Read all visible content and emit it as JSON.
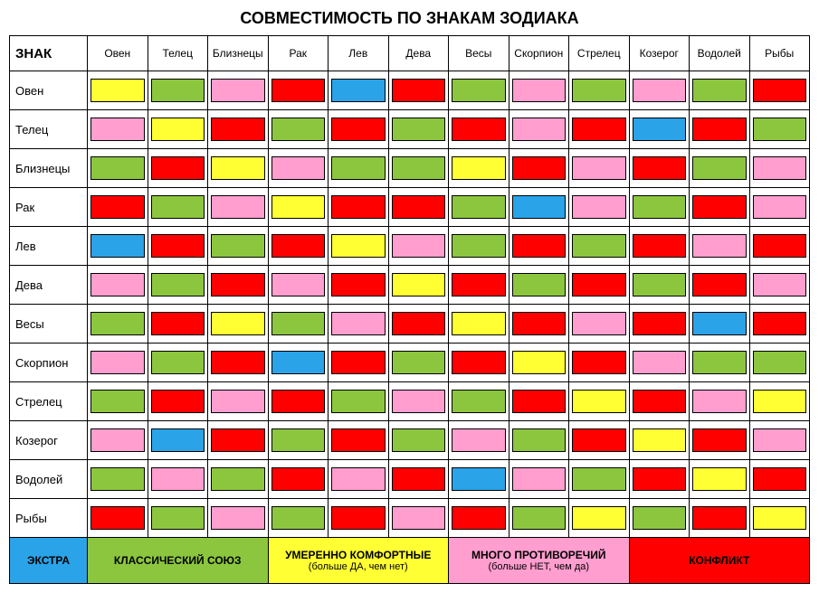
{
  "title": "СОВМЕСТИМОСТЬ ПО ЗНАКАМ ЗОДИАКА",
  "corner_label": "ЗНАК",
  "signs": [
    "Овен",
    "Телец",
    "Близнецы",
    "Рак",
    "Лев",
    "Дева",
    "Весы",
    "Скорпион",
    "Стрелец",
    "Козерог",
    "Водолей",
    "Рыбы"
  ],
  "colors": {
    "E": "#2aa3e8",
    "G": "#8cc63f",
    "Y": "#ffff33",
    "P": "#ff9ecf",
    "R": "#ff0000"
  },
  "grid": [
    [
      "Y",
      "G",
      "P",
      "R",
      "E",
      "R",
      "G",
      "P",
      "G",
      "P",
      "G",
      "R"
    ],
    [
      "P",
      "Y",
      "R",
      "G",
      "R",
      "G",
      "R",
      "P",
      "R",
      "E",
      "R",
      "G"
    ],
    [
      "G",
      "R",
      "Y",
      "P",
      "G",
      "G",
      "Y",
      "R",
      "P",
      "R",
      "G",
      "P"
    ],
    [
      "R",
      "G",
      "P",
      "Y",
      "R",
      "R",
      "G",
      "E",
      "P",
      "G",
      "R",
      "P"
    ],
    [
      "E",
      "R",
      "G",
      "R",
      "Y",
      "P",
      "G",
      "R",
      "G",
      "R",
      "P",
      "R"
    ],
    [
      "P",
      "G",
      "R",
      "P",
      "R",
      "Y",
      "R",
      "G",
      "R",
      "G",
      "R",
      "P"
    ],
    [
      "G",
      "R",
      "Y",
      "G",
      "P",
      "R",
      "Y",
      "R",
      "P",
      "R",
      "E",
      "R"
    ],
    [
      "P",
      "G",
      "R",
      "E",
      "R",
      "G",
      "R",
      "Y",
      "R",
      "P",
      "G",
      "G"
    ],
    [
      "G",
      "R",
      "P",
      "R",
      "G",
      "P",
      "G",
      "R",
      "Y",
      "R",
      "P",
      "Y"
    ],
    [
      "P",
      "E",
      "R",
      "G",
      "R",
      "G",
      "P",
      "G",
      "R",
      "Y",
      "R",
      "P"
    ],
    [
      "G",
      "P",
      "G",
      "R",
      "P",
      "R",
      "E",
      "P",
      "G",
      "R",
      "Y",
      "R"
    ],
    [
      "R",
      "G",
      "P",
      "G",
      "R",
      "P",
      "R",
      "G",
      "Y",
      "G",
      "R",
      "Y"
    ]
  ],
  "legend": {
    "extra": "ЭКСТРА",
    "classic": "КЛАССИЧЕСКИЙ СОЮЗ",
    "comfort_main": "УМЕРЕННО КОМФОРТНЫЕ",
    "comfort_sub": "(больше ДА, чем нет)",
    "contra_main": "МНОГО ПРОТИВОРЕЧИЙ",
    "contra_sub": "(больше НЕТ, чем да)",
    "conflict": "КОНФЛИКТ"
  }
}
